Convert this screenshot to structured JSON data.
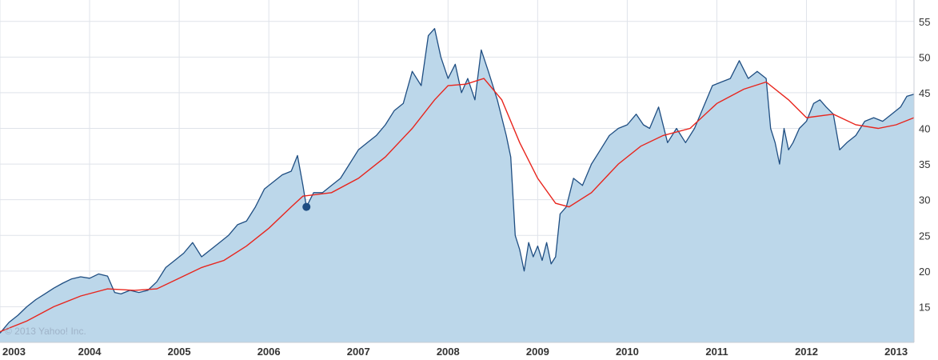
{
  "chart_data": {
    "type": "area",
    "title": "",
    "xlabel": "",
    "ylabel": "",
    "watermark": "© 2013 Yahoo! Inc.",
    "x_tick_labels": [
      "2003",
      "2004",
      "2005",
      "2006",
      "2007",
      "2008",
      "2009",
      "2010",
      "2011",
      "2012",
      "2013"
    ],
    "y_ticks": [
      15,
      20,
      25,
      30,
      35,
      40,
      45,
      50,
      55
    ],
    "xlim": [
      2003.0,
      2013.2
    ],
    "ylim": [
      10,
      58
    ],
    "grid": true,
    "colors": {
      "price_line": "#1f4e82",
      "price_fill": "#bcd7ea",
      "moving_average": "#e8251d",
      "grid": "#dfe3ea",
      "marker": "#1f4e82"
    },
    "marker": {
      "x": 2006.42,
      "y": 29.0
    },
    "series": [
      {
        "kind": "price",
        "points": [
          [
            2003.0,
            11.3
          ],
          [
            2003.1,
            12.8
          ],
          [
            2003.2,
            13.8
          ],
          [
            2003.3,
            15.0
          ],
          [
            2003.4,
            16.0
          ],
          [
            2003.5,
            16.8
          ],
          [
            2003.6,
            17.6
          ],
          [
            2003.7,
            18.3
          ],
          [
            2003.8,
            18.9
          ],
          [
            2003.9,
            19.2
          ],
          [
            2004.0,
            19.0
          ],
          [
            2004.1,
            19.6
          ],
          [
            2004.2,
            19.3
          ],
          [
            2004.28,
            17.0
          ],
          [
            2004.35,
            16.8
          ],
          [
            2004.45,
            17.3
          ],
          [
            2004.55,
            17.0
          ],
          [
            2004.65,
            17.3
          ],
          [
            2004.75,
            18.5
          ],
          [
            2004.85,
            20.5
          ],
          [
            2004.95,
            21.5
          ],
          [
            2005.05,
            22.5
          ],
          [
            2005.15,
            24.0
          ],
          [
            2005.25,
            22.0
          ],
          [
            2005.35,
            23.0
          ],
          [
            2005.45,
            24.0
          ],
          [
            2005.55,
            25.0
          ],
          [
            2005.65,
            26.5
          ],
          [
            2005.75,
            27.0
          ],
          [
            2005.85,
            29.0
          ],
          [
            2005.95,
            31.5
          ],
          [
            2006.05,
            32.5
          ],
          [
            2006.15,
            33.5
          ],
          [
            2006.25,
            34.0
          ],
          [
            2006.32,
            36.2
          ],
          [
            2006.38,
            32.0
          ],
          [
            2006.42,
            29.0
          ],
          [
            2006.5,
            31.0
          ],
          [
            2006.6,
            31.0
          ],
          [
            2006.7,
            32.0
          ],
          [
            2006.8,
            33.0
          ],
          [
            2006.9,
            35.0
          ],
          [
            2007.0,
            37.0
          ],
          [
            2007.1,
            38.0
          ],
          [
            2007.2,
            39.0
          ],
          [
            2007.3,
            40.5
          ],
          [
            2007.4,
            42.5
          ],
          [
            2007.5,
            43.5
          ],
          [
            2007.6,
            48.0
          ],
          [
            2007.7,
            46.0
          ],
          [
            2007.78,
            53.0
          ],
          [
            2007.85,
            54.0
          ],
          [
            2007.92,
            50.0
          ],
          [
            2008.0,
            47.0
          ],
          [
            2008.08,
            49.0
          ],
          [
            2008.15,
            45.0
          ],
          [
            2008.22,
            47.0
          ],
          [
            2008.3,
            44.0
          ],
          [
            2008.37,
            51.0
          ],
          [
            2008.45,
            48.0
          ],
          [
            2008.55,
            44.0
          ],
          [
            2008.65,
            39.0
          ],
          [
            2008.7,
            36.0
          ],
          [
            2008.75,
            25.0
          ],
          [
            2008.8,
            23.0
          ],
          [
            2008.85,
            20.0
          ],
          [
            2008.9,
            24.0
          ],
          [
            2008.95,
            22.0
          ],
          [
            2009.0,
            23.5
          ],
          [
            2009.05,
            21.5
          ],
          [
            2009.1,
            24.0
          ],
          [
            2009.15,
            21.0
          ],
          [
            2009.2,
            22.0
          ],
          [
            2009.25,
            28.0
          ],
          [
            2009.32,
            29.0
          ],
          [
            2009.4,
            33.0
          ],
          [
            2009.5,
            32.0
          ],
          [
            2009.6,
            35.0
          ],
          [
            2009.7,
            37.0
          ],
          [
            2009.8,
            39.0
          ],
          [
            2009.9,
            40.0
          ],
          [
            2010.0,
            40.5
          ],
          [
            2010.1,
            42.0
          ],
          [
            2010.18,
            40.5
          ],
          [
            2010.25,
            40.0
          ],
          [
            2010.35,
            43.0
          ],
          [
            2010.45,
            38.0
          ],
          [
            2010.55,
            40.0
          ],
          [
            2010.65,
            38.0
          ],
          [
            2010.75,
            40.0
          ],
          [
            2010.85,
            43.0
          ],
          [
            2010.95,
            46.0
          ],
          [
            2011.05,
            46.5
          ],
          [
            2011.15,
            47.0
          ],
          [
            2011.25,
            49.5
          ],
          [
            2011.35,
            47.0
          ],
          [
            2011.45,
            48.0
          ],
          [
            2011.55,
            47.0
          ],
          [
            2011.6,
            40.0
          ],
          [
            2011.65,
            38.0
          ],
          [
            2011.7,
            35.0
          ],
          [
            2011.75,
            40.0
          ],
          [
            2011.8,
            37.0
          ],
          [
            2011.85,
            38.0
          ],
          [
            2011.92,
            40.0
          ],
          [
            2012.0,
            41.0
          ],
          [
            2012.08,
            43.5
          ],
          [
            2012.15,
            44.0
          ],
          [
            2012.22,
            43.0
          ],
          [
            2012.3,
            42.0
          ],
          [
            2012.37,
            37.0
          ],
          [
            2012.45,
            38.0
          ],
          [
            2012.55,
            39.0
          ],
          [
            2012.65,
            41.0
          ],
          [
            2012.75,
            41.5
          ],
          [
            2012.85,
            41.0
          ],
          [
            2012.95,
            42.0
          ],
          [
            2013.05,
            43.0
          ],
          [
            2013.12,
            44.5
          ],
          [
            2013.2,
            44.8
          ]
        ]
      },
      {
        "kind": "moving_average",
        "points": [
          [
            2003.0,
            11.5
          ],
          [
            2003.3,
            13.0
          ],
          [
            2003.6,
            15.0
          ],
          [
            2003.9,
            16.5
          ],
          [
            2004.2,
            17.5
          ],
          [
            2004.5,
            17.3
          ],
          [
            2004.75,
            17.5
          ],
          [
            2005.0,
            19.0
          ],
          [
            2005.25,
            20.5
          ],
          [
            2005.5,
            21.5
          ],
          [
            2005.75,
            23.5
          ],
          [
            2006.0,
            26.0
          ],
          [
            2006.25,
            29.0
          ],
          [
            2006.38,
            30.5
          ],
          [
            2006.7,
            31.0
          ],
          [
            2007.0,
            33.0
          ],
          [
            2007.3,
            36.0
          ],
          [
            2007.6,
            40.0
          ],
          [
            2007.85,
            44.0
          ],
          [
            2008.0,
            46.0
          ],
          [
            2008.2,
            46.2
          ],
          [
            2008.4,
            47.0
          ],
          [
            2008.6,
            44.0
          ],
          [
            2008.8,
            38.0
          ],
          [
            2009.0,
            33.0
          ],
          [
            2009.2,
            29.5
          ],
          [
            2009.35,
            29.0
          ],
          [
            2009.6,
            31.0
          ],
          [
            2009.9,
            35.0
          ],
          [
            2010.15,
            37.5
          ],
          [
            2010.4,
            39.0
          ],
          [
            2010.7,
            40.0
          ],
          [
            2011.0,
            43.5
          ],
          [
            2011.3,
            45.5
          ],
          [
            2011.55,
            46.5
          ],
          [
            2011.8,
            44.0
          ],
          [
            2012.0,
            41.5
          ],
          [
            2012.3,
            42.0
          ],
          [
            2012.55,
            40.5
          ],
          [
            2012.8,
            40.0
          ],
          [
            2013.0,
            40.5
          ],
          [
            2013.2,
            41.5
          ]
        ]
      }
    ]
  }
}
